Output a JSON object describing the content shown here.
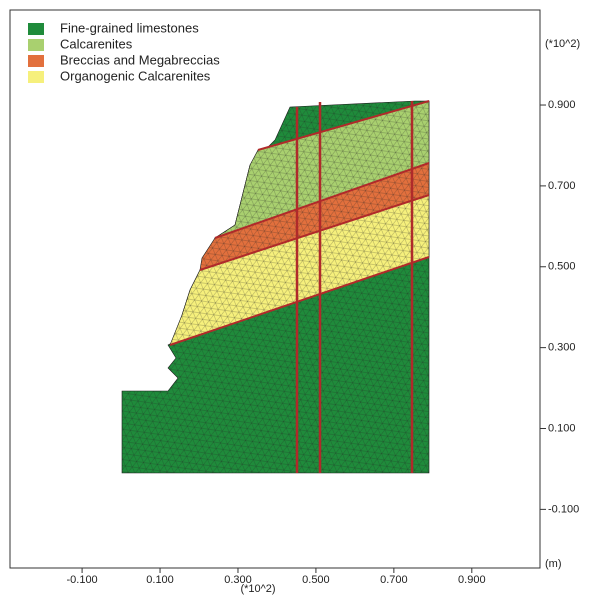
{
  "chart_data": {
    "type": "mesh",
    "legend": [
      {
        "name": "Fine-grained limestones",
        "color": "#1f8b3b"
      },
      {
        "name": "Calcarenites",
        "color": "#a9d06f"
      },
      {
        "name": "Breccias and Megabreccias",
        "color": "#e2703d"
      },
      {
        "name": "Organogenic Calcarenites",
        "color": "#f6f07c"
      }
    ],
    "x_scale_label": "(*10^2)",
    "y_scale_label": "(*10^2)",
    "unit_label": "(m)",
    "xlim": [
      -0.285,
      1.075
    ],
    "ylim": [
      -0.245,
      1.135
    ],
    "xticks": [
      {
        "value": -0.1,
        "label": "-0.100"
      },
      {
        "value": 0.1,
        "label": "0.100"
      },
      {
        "value": 0.3,
        "label": "0.300"
      },
      {
        "value": 0.5,
        "label": "0.500"
      },
      {
        "value": 0.7,
        "label": "0.700"
      },
      {
        "value": 0.9,
        "label": "0.900"
      }
    ],
    "yticks": [
      {
        "value": -0.1,
        "label": "-0.100"
      },
      {
        "value": 0.1,
        "label": "0.100"
      },
      {
        "value": 0.3,
        "label": "0.300"
      },
      {
        "value": 0.5,
        "label": "0.500"
      },
      {
        "value": 0.7,
        "label": "0.700"
      },
      {
        "value": 0.9,
        "label": "0.900"
      }
    ]
  }
}
